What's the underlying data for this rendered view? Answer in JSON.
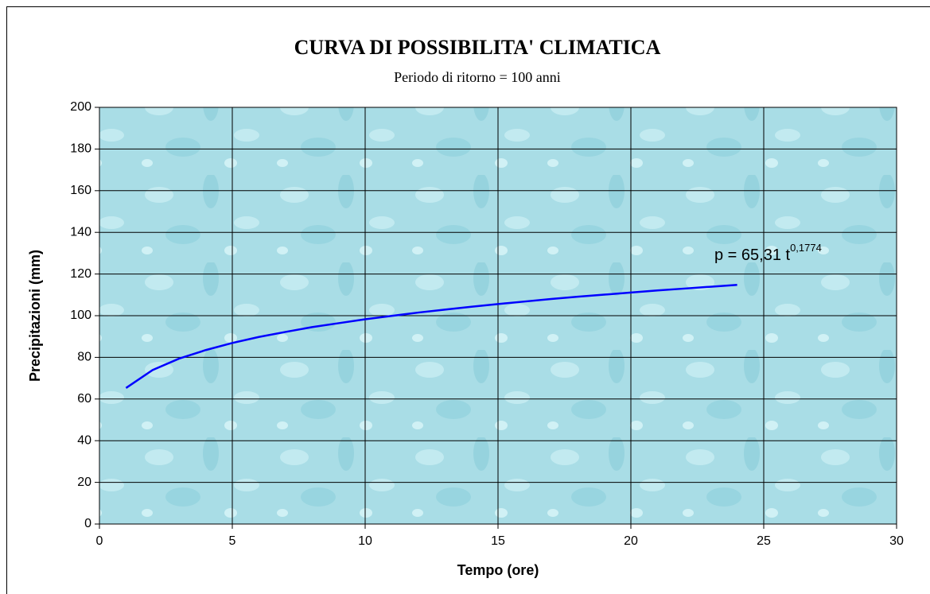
{
  "chart_data": {
    "type": "line",
    "title": "CURVA DI POSSIBILITA' CLIMATICA",
    "subtitle": "Periodo di ritorno = 100 anni",
    "x_label": "Tempo (ore)",
    "y_label": "Precipitazioni (mm)",
    "annotation": {
      "text": "p = 65,31 t",
      "exponent": "0,1774"
    },
    "x": [
      1,
      2,
      3,
      4,
      5,
      6,
      7,
      8,
      9,
      10,
      11,
      12,
      13,
      14,
      15,
      16,
      17,
      18,
      19,
      20,
      21,
      22,
      23,
      24
    ],
    "values": [
      65.3,
      73.9,
      79.4,
      83.5,
      86.9,
      89.8,
      92.2,
      94.5,
      96.4,
      98.3,
      99.9,
      101.5,
      102.9,
      104.3,
      105.6,
      106.8,
      108.0,
      109.1,
      110.1,
      111.1,
      112.1,
      113.0,
      113.9,
      114.8
    ],
    "color": "#0000ff",
    "xlim": [
      0,
      30
    ],
    "xticks": [
      0,
      5,
      10,
      15,
      20,
      25,
      30
    ],
    "ylim": [
      0,
      200
    ],
    "yticks": [
      0,
      20,
      40,
      60,
      80,
      100,
      120,
      140,
      160,
      180,
      200
    ],
    "grid": true
  }
}
